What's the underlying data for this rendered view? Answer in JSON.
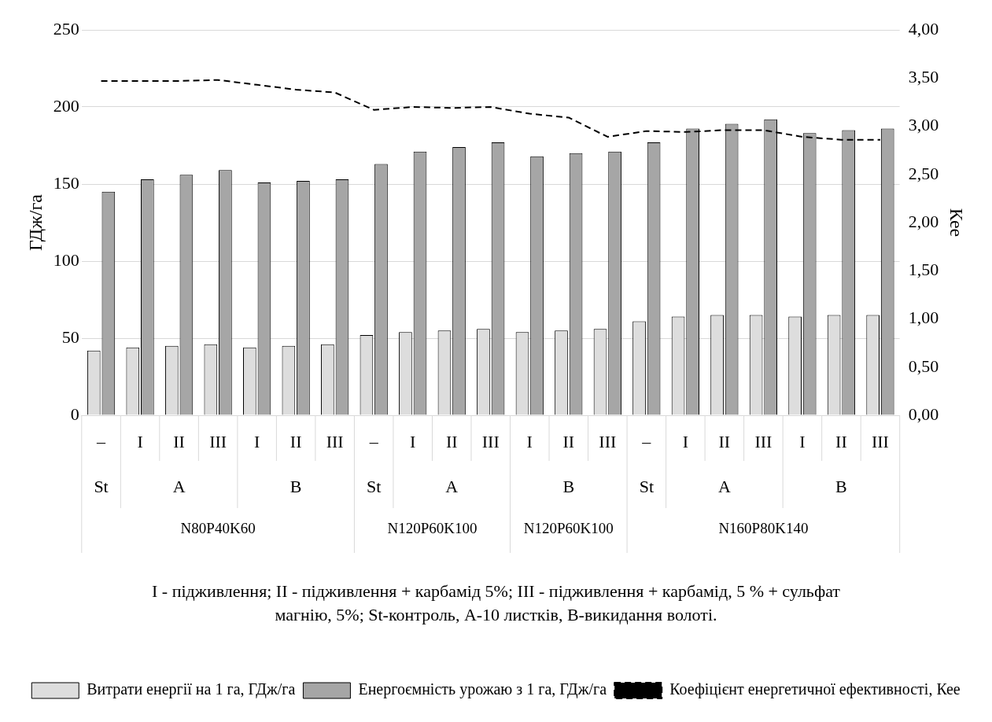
{
  "chart_data": {
    "type": "bar",
    "categories": [
      "–",
      "I",
      "II",
      "III",
      "I",
      "II",
      "III",
      "–",
      "I",
      "II",
      "III",
      "I",
      "II",
      "III",
      "–",
      "I",
      "II",
      "III",
      "I",
      "II",
      "III"
    ],
    "ylabel": "ГДж/га",
    "y2label": "Кее",
    "ylim": [
      0,
      250
    ],
    "yticks": [
      0,
      50,
      100,
      150,
      200,
      250
    ],
    "y2lim": [
      0,
      4
    ],
    "y2ticks": [
      {
        "value": 0,
        "label": "0,00"
      },
      {
        "value": 0.5,
        "label": "0,50"
      },
      {
        "value": 1,
        "label": "1,00"
      },
      {
        "value": 1.5,
        "label": "1,50"
      },
      {
        "value": 2,
        "label": "2,00"
      },
      {
        "value": 2.5,
        "label": "2,50"
      },
      {
        "value": 3,
        "label": "3,00"
      },
      {
        "value": 3.5,
        "label": "3,50"
      },
      {
        "value": 4,
        "label": "4,00"
      }
    ],
    "grid": "y",
    "legend": "bottom",
    "annotations": [
      "St",
      "A",
      "B",
      "St",
      "A",
      "B",
      "St",
      "A",
      "B",
      "N80P40K60",
      "N120P60K100",
      "N120P60K100",
      "N160P80K140",
      "I - підживлення; II - підживлення + карбамід 5%; III - підживлення + карбамід, 5 % + сульфат магнію, 5%; St-контроль, А-10 листків, В-викидання волоті."
    ],
    "series": [
      {
        "name": "Витрати енергії на 1 га, ГДж/га",
        "color": "#dddddd",
        "values": [
          42,
          44,
          45,
          46,
          44,
          45,
          46,
          52,
          54,
          55,
          56,
          54,
          55,
          56,
          61,
          64,
          65,
          65,
          64,
          65,
          65
        ]
      },
      {
        "name": "Енергоємність урожаю з 1 га, ГДж/га",
        "color": "#a6a6a6",
        "values": [
          145,
          153,
          156,
          159,
          151,
          152,
          153,
          163,
          171,
          174,
          177,
          168,
          170,
          171,
          177,
          186,
          189,
          192,
          183,
          185,
          186
        ]
      },
      {
        "name": "Коефіцієнт енергетичної ефективності, Кее",
        "type": "line",
        "axis": "y2",
        "color": "#000000",
        "line_style": "dashed",
        "marker": "none",
        "values": [
          3.47,
          3.47,
          3.47,
          3.48,
          3.43,
          3.38,
          3.35,
          3.17,
          3.2,
          3.19,
          3.2,
          3.13,
          3.09,
          2.89,
          2.95,
          2.94,
          2.96,
          2.96,
          2.89,
          2.86,
          2.86
        ]
      }
    ]
  }
}
